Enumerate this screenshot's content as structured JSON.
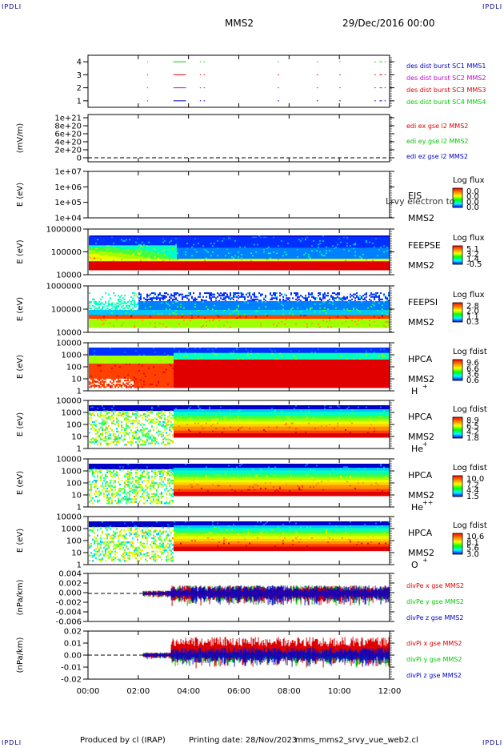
{
  "header": {
    "mission": "MMS2",
    "date": "29/Dec/2016 00:00",
    "corner": "IPDLI"
  },
  "footer": {
    "produced": "Produced by cl (IRAP)",
    "printing": "Printing date: 28/Nov/2023",
    "file": "mms_mms2_srvy_vue_web2.cl"
  },
  "colors": {
    "blue": "#0000cc",
    "red": "#dd0000",
    "green": "#00cc00",
    "magenta": "#cc00cc"
  },
  "chart_data": [
    {
      "type": "line",
      "panel": "des-dist-burst",
      "yticks": [
        "1",
        "2",
        "3",
        "4"
      ],
      "ylim": [
        0.5,
        4.5
      ],
      "series": [
        {
          "name": "des dist burst SC1 MMS1",
          "color": "#0000cc",
          "y": 1
        },
        {
          "name": "des dist burst SC2 MMS2",
          "color": "#cc00cc",
          "y": 2
        },
        {
          "name": "des dist burst SC3 MMS3",
          "color": "#dd0000",
          "y": 3
        },
        {
          "name": "des dist burst SC4 MMS4",
          "color": "#00cc00",
          "y": 4
        }
      ],
      "intervals_hours": [
        [
          3.4,
          3.9
        ],
        [
          4.45,
          4.5
        ],
        [
          4.6,
          4.65
        ],
        [
          7.55,
          7.6
        ],
        [
          9.1,
          9.15
        ],
        [
          10.0,
          10.05
        ],
        [
          11.4,
          11.45
        ],
        [
          11.6,
          11.7
        ],
        [
          11.8,
          11.85
        ],
        [
          2.35,
          2.36
        ]
      ]
    },
    {
      "type": "line",
      "panel": "edi",
      "ylabel": "(mV/m)",
      "yticks": [
        "0",
        "2e+20",
        "4e+20",
        "6e+20",
        "8e+20",
        "1e+21"
      ],
      "ylim": [
        0,
        1e+21
      ],
      "series": [
        {
          "name": "edi ex gse l2 MMS2",
          "color": "#dd0000"
        },
        {
          "name": "edi ey gse l2 MMS2",
          "color": "#00cc00"
        },
        {
          "name": "edi ez gse l2 MMS2",
          "color": "#0000cc"
        }
      ]
    },
    {
      "type": "heatmap",
      "panel": "EIS",
      "ylabel": "E (eV)",
      "yticks": [
        "1e+04",
        "1e+05",
        "1e+06",
        "1e+07"
      ],
      "labels": [
        "EIS",
        "MMS2"
      ],
      "overlay": "Lrvy electron to",
      "colorbar": {
        "title": "Log flux",
        "ticks": [
          "0.0",
          "0.0",
          "0.0",
          "0.0"
        ]
      }
    },
    {
      "type": "heatmap",
      "panel": "FEEPSE",
      "ylabel": "E (eV)",
      "yticks": [
        "10000",
        "100000",
        "1000000"
      ],
      "labels": [
        "FEEPSE",
        "MMS2"
      ],
      "colorbar": {
        "title": "Log flux",
        "ticks": [
          "5.1",
          "3.2",
          "1.4",
          "-0.5"
        ]
      }
    },
    {
      "type": "heatmap",
      "panel": "FEEPSI",
      "ylabel": "E (eV)",
      "yticks": [
        "10000",
        "100000",
        "1000000"
      ],
      "labels": [
        "FEEPSI",
        "MMS2"
      ],
      "colorbar": {
        "title": "Log flux",
        "ticks": [
          "2.8",
          "2.0",
          "1.1",
          "0.3"
        ]
      }
    },
    {
      "type": "heatmap",
      "panel": "HPCA-H",
      "ylabel": "E (eV)",
      "yticks": [
        "1",
        "10",
        "100",
        "1000",
        "10000"
      ],
      "labels": [
        "HPCA",
        "MMS2"
      ],
      "species": "H",
      "species_sup": "+",
      "colorbar": {
        "title": "Log fdist",
        "ticks": [
          "9.6",
          "6.6",
          "3.6",
          "0.6"
        ]
      }
    },
    {
      "type": "heatmap",
      "panel": "HPCA-He+",
      "ylabel": "E (eV)",
      "yticks": [
        "1",
        "10",
        "100",
        "1000",
        "10000"
      ],
      "labels": [
        "HPCA",
        "MMS2"
      ],
      "species": "He",
      "species_sup": "+",
      "colorbar": {
        "title": "Log fdist",
        "ticks": [
          "8.9",
          "6.5",
          "4.2",
          "1.8"
        ]
      }
    },
    {
      "type": "heatmap",
      "panel": "HPCA-He++",
      "ylabel": "E (eV)",
      "yticks": [
        "1",
        "10",
        "100",
        "1000",
        "10000"
      ],
      "labels": [
        "HPCA",
        "MMS2"
      ],
      "species": "He",
      "species_sup": "++",
      "colorbar": {
        "title": "Log fdist",
        "ticks": [
          "10.0",
          "7.2",
          "4.4",
          "1.5"
        ]
      }
    },
    {
      "type": "heatmap",
      "panel": "HPCA-O+",
      "ylabel": "E (eV)",
      "yticks": [
        "1",
        "10",
        "100",
        "1000",
        "10000"
      ],
      "labels": [
        "HPCA",
        "MMS2"
      ],
      "species": "O",
      "species_sup": "+",
      "colorbar": {
        "title": "Log fdist",
        "ticks": [
          "10.6",
          "8.1",
          "5.6",
          "3.0"
        ]
      }
    },
    {
      "type": "line",
      "panel": "divPe",
      "ylabel": "(nPa/km)",
      "yticks": [
        "-0.006",
        "-0.004",
        "-0.002",
        "0.000",
        "0.002",
        "0.004"
      ],
      "ylim": [
        -0.007,
        0.005
      ],
      "series": [
        {
          "name": "divPe x gse MMS2",
          "color": "#dd0000"
        },
        {
          "name": "divPe y gse MMS2",
          "color": "#00cc00"
        },
        {
          "name": "divPe z gse MMS2",
          "color": "#0000cc"
        }
      ]
    },
    {
      "type": "line",
      "panel": "divPi",
      "ylabel": "(nPa/km)",
      "yticks": [
        "-0.02",
        "-0.01",
        "0.00",
        "0.01",
        "0.02"
      ],
      "ylim": [
        -0.021,
        0.021
      ],
      "series": [
        {
          "name": "divPi x gse MMS2",
          "color": "#dd0000"
        },
        {
          "name": "divPi y gse MMS2",
          "color": "#00cc00"
        },
        {
          "name": "divPi z gse MMS2",
          "color": "#0000cc"
        }
      ]
    }
  ],
  "xaxis": {
    "ticks": [
      "00:00",
      "02:00",
      "04:00",
      "06:00",
      "08:00",
      "10:00",
      "12:00"
    ],
    "range_hours": [
      0,
      12
    ]
  }
}
